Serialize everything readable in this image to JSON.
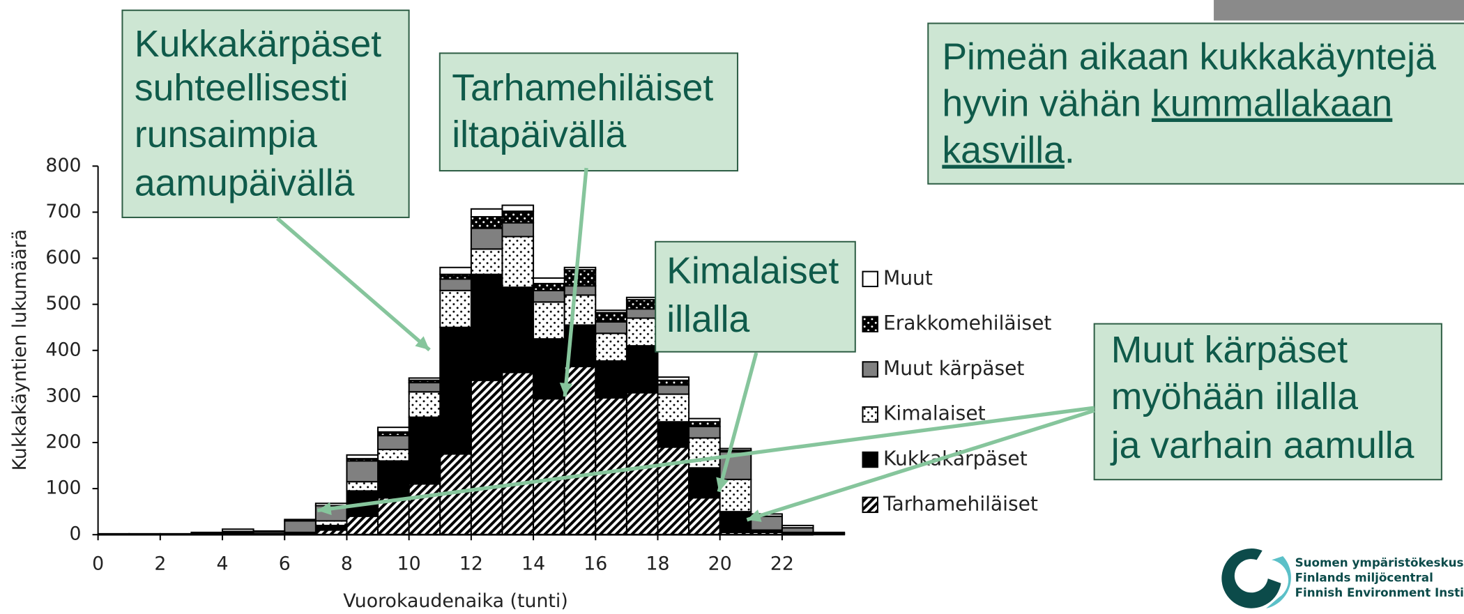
{
  "chart_data": {
    "type": "histogram",
    "stacked": true,
    "x_label": "Vuorokaudenaika (tunti)",
    "y_label": "Kukkakäyntien lukumäärä",
    "bins": [
      0,
      1,
      2,
      3,
      4,
      5,
      6,
      7,
      8,
      9,
      10,
      11,
      12,
      13,
      14,
      15,
      16,
      17,
      18,
      19,
      20,
      21,
      22,
      23,
      24
    ],
    "xlim": [
      0,
      23
    ],
    "xticks": [
      0,
      2,
      4,
      6,
      8,
      10,
      12,
      14,
      16,
      18,
      20,
      22
    ],
    "ylim": [
      0,
      800
    ],
    "yticks": [
      0,
      100,
      200,
      300,
      400,
      500,
      600,
      700,
      800
    ],
    "legend": "right",
    "series": [
      {
        "name": "Tarhamehiläiset",
        "color": "#ffffff",
        "pattern": "hatch",
        "pattern_color": "#000000",
        "values": [
          0,
          0,
          0,
          0,
          0,
          0,
          2,
          10,
          40,
          80,
          110,
          175,
          335,
          352,
          295,
          365,
          297,
          308,
          190,
          80,
          5,
          5,
          2,
          1
        ]
      },
      {
        "name": "Kukkakärpäset",
        "color": "#000000",
        "values": [
          0,
          0,
          0,
          1,
          2,
          2,
          3,
          10,
          55,
          80,
          145,
          275,
          230,
          185,
          130,
          90,
          80,
          102,
          55,
          65,
          45,
          5,
          3,
          1
        ]
      },
      {
        "name": "Kimalaiset",
        "color": "#ffffff",
        "pattern": "dots",
        "pattern_color": "#000000",
        "values": [
          0,
          0,
          0,
          0,
          2,
          0,
          0,
          10,
          20,
          25,
          55,
          80,
          55,
          110,
          80,
          65,
          60,
          60,
          60,
          65,
          70,
          0,
          0,
          0
        ]
      },
      {
        "name": "Muut kärpäset",
        "color": "#808080",
        "values": [
          1,
          1,
          1,
          2,
          3,
          4,
          25,
          33,
          45,
          30,
          20,
          25,
          45,
          30,
          25,
          20,
          25,
          20,
          20,
          25,
          60,
          30,
          10,
          2
        ]
      },
      {
        "name": "Erakkomehiläiset",
        "color": "#000000",
        "pattern": "dots",
        "pattern_color": "#ffffff",
        "values": [
          0,
          0,
          0,
          0,
          0,
          0,
          0,
          0,
          5,
          8,
          5,
          10,
          25,
          25,
          15,
          35,
          20,
          20,
          10,
          10,
          3,
          0,
          0,
          0
        ]
      },
      {
        "name": "Muut",
        "color": "#ffffff",
        "values": [
          1,
          1,
          1,
          2,
          5,
          2,
          3,
          5,
          8,
          10,
          5,
          15,
          17,
          13,
          12,
          5,
          5,
          5,
          7,
          7,
          4,
          5,
          5,
          1
        ]
      }
    ],
    "annotations": [
      {
        "lines": [
          "Kukkakärpäset",
          "suhteellisesti",
          "runsaimpia",
          "aamupäivällä"
        ]
      },
      {
        "lines": [
          "Tarhamehiläiset",
          "iltapäivällä"
        ]
      },
      {
        "lines": [
          [
            {
              "text": "Pimeän aikaan kukkakäyntejä"
            }
          ],
          [
            {
              "text": "hyvin vähän "
            },
            {
              "text": "kummallakaan",
              "underline": true
            }
          ],
          [
            {
              "text": "kasvilla",
              "underline": true
            },
            {
              "text": "."
            }
          ]
        ]
      },
      {
        "lines": [
          "Kimalaiset",
          "illalla"
        ]
      },
      {
        "lines": [
          "Muut kärpäset",
          "myöhään illalla",
          "ja varhain aamulla"
        ]
      }
    ]
  },
  "logo": {
    "lines": [
      "Suomen ympäristökeskus",
      "Finlands miljöcentral",
      "Finnish Environment Institute"
    ]
  }
}
